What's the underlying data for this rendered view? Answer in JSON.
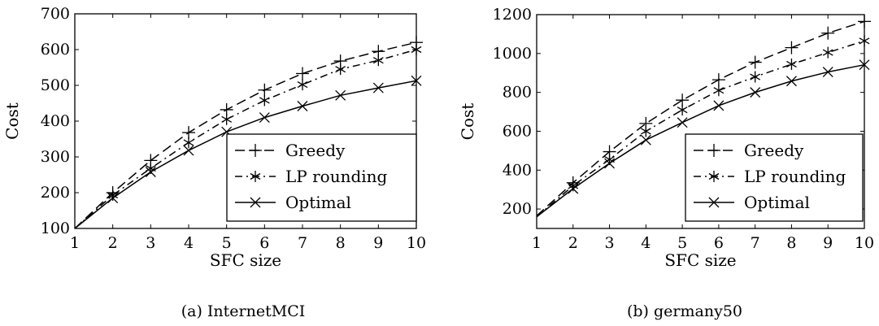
{
  "figure": {
    "captions": [
      "(a) InternetMCI",
      "(b) germany50"
    ]
  },
  "chart_data": [
    {
      "type": "line",
      "title": "",
      "xlabel": "SFC size",
      "ylabel": "Cost",
      "xlim": [
        1,
        10
      ],
      "ylim": [
        100,
        700
      ],
      "xticks": [
        1,
        2,
        3,
        4,
        5,
        6,
        7,
        8,
        9,
        10
      ],
      "yticks": [
        100,
        200,
        300,
        400,
        500,
        600,
        700
      ],
      "grid": false,
      "legend_position": "lower-right",
      "x": [
        1,
        2,
        3,
        4,
        5,
        6,
        7,
        8,
        9,
        10
      ],
      "series": [
        {
          "name": "Greedy",
          "marker": "+",
          "dash": "dashed",
          "color": "#000000",
          "values": [
            100,
            200,
            290,
            368,
            432,
            487,
            533,
            568,
            595,
            620
          ]
        },
        {
          "name": "LP rounding",
          "marker": "*",
          "dash": "dashdot",
          "color": "#000000",
          "values": [
            100,
            193,
            268,
            340,
            405,
            458,
            502,
            545,
            570,
            600
          ]
        },
        {
          "name": "Optimal",
          "marker": "x",
          "dash": "solid",
          "color": "#000000",
          "values": [
            100,
            185,
            258,
            318,
            370,
            410,
            442,
            472,
            493,
            513
          ]
        }
      ]
    },
    {
      "type": "line",
      "title": "",
      "xlabel": "SFC size",
      "ylabel": "Cost",
      "xlim": [
        1,
        10
      ],
      "ylim": [
        100,
        1200
      ],
      "xticks": [
        1,
        2,
        3,
        4,
        5,
        6,
        7,
        8,
        9,
        10
      ],
      "yticks": [
        200,
        400,
        600,
        800,
        1000,
        1200
      ],
      "grid": false,
      "legend_position": "lower-right",
      "x": [
        1,
        2,
        3,
        4,
        5,
        6,
        7,
        8,
        9,
        10
      ],
      "series": [
        {
          "name": "Greedy",
          "marker": "+",
          "dash": "dashed",
          "color": "#000000",
          "values": [
            165,
            335,
            495,
            640,
            760,
            865,
            955,
            1030,
            1105,
            1165
          ]
        },
        {
          "name": "LP rounding",
          "marker": "*",
          "dash": "dashdot",
          "color": "#000000",
          "values": [
            160,
            320,
            455,
            600,
            710,
            810,
            880,
            945,
            1005,
            1065
          ]
        },
        {
          "name": "Optimal",
          "marker": "x",
          "dash": "solid",
          "color": "#000000",
          "values": [
            160,
            305,
            435,
            555,
            645,
            732,
            800,
            858,
            905,
            942
          ]
        }
      ]
    }
  ]
}
